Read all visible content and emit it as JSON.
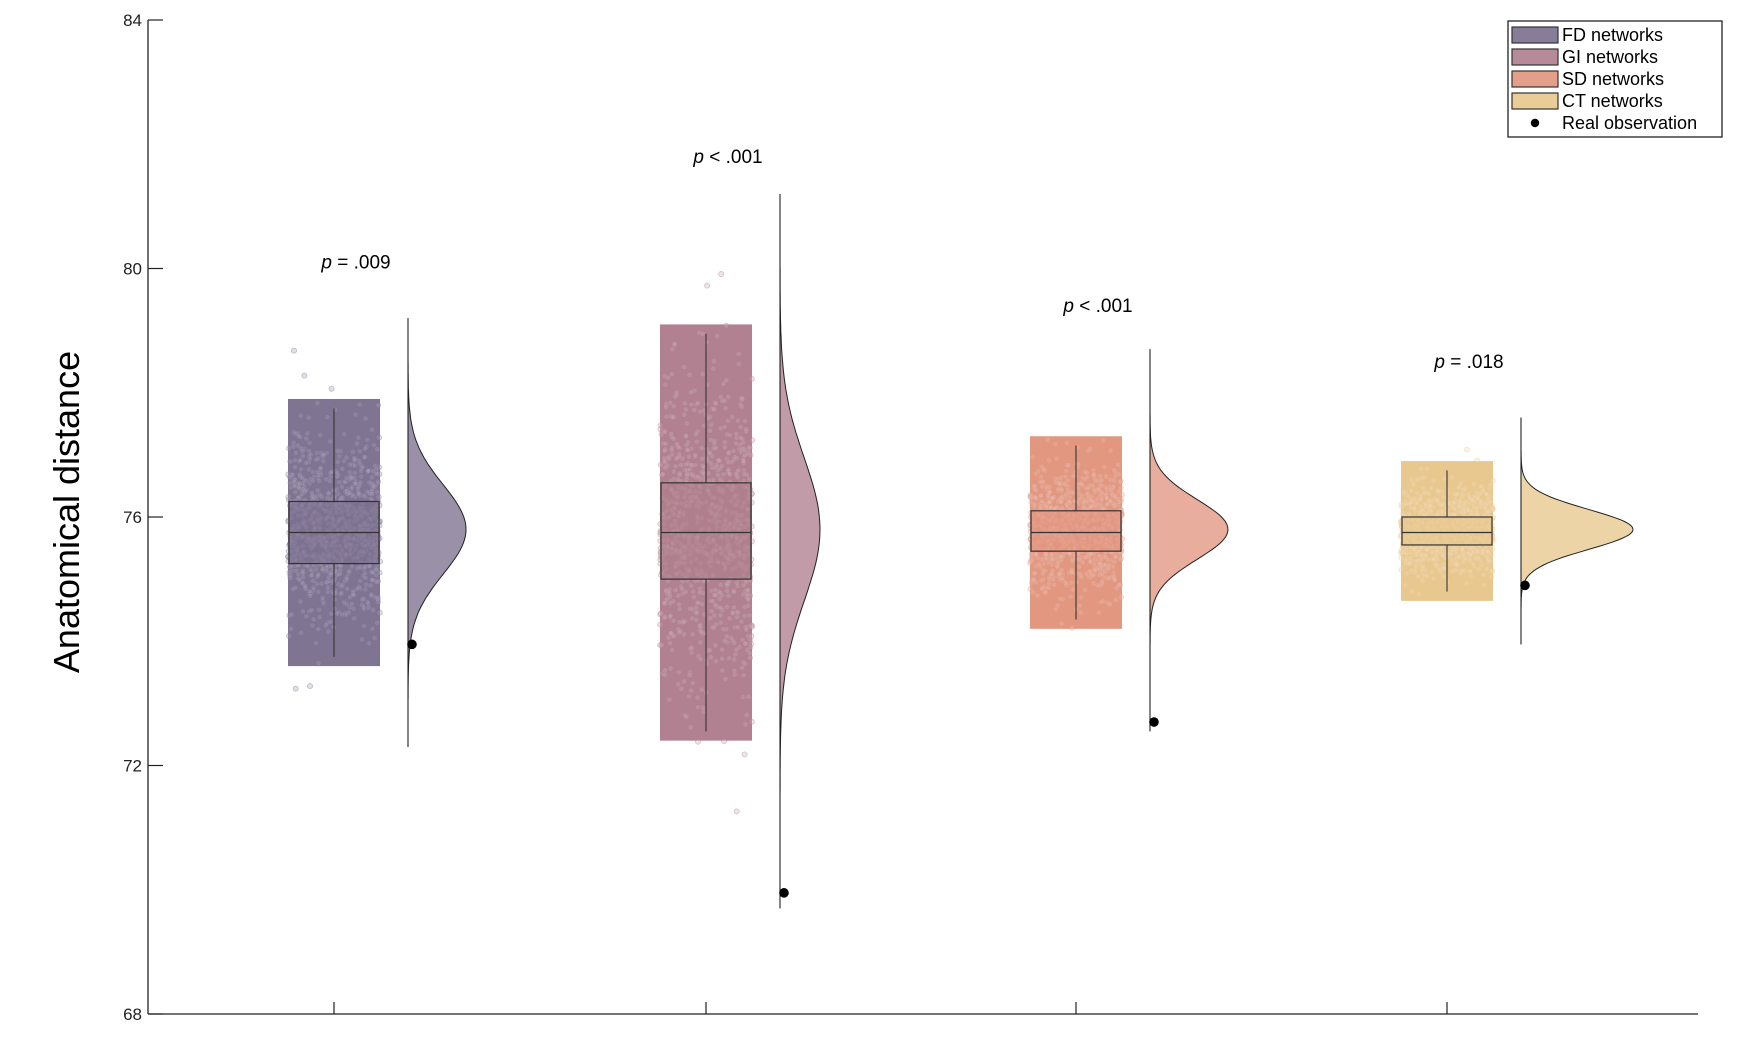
{
  "chart_data": {
    "type": "raincloud",
    "title": "",
    "xlabel": "",
    "ylabel": "Anatomical distance",
    "ylim": [
      68,
      84
    ],
    "yticks": [
      68,
      72,
      76,
      80,
      84
    ],
    "grid": false,
    "legend_position": "top-right",
    "legend": {
      "entries": [
        "FD networks",
        "GI  networks",
        "SD networks",
        "CT networks"
      ],
      "observation_label": "Real observation"
    },
    "series": [
      {
        "name": "FD networks",
        "color": "#7b6f8e",
        "box": {
          "q1": 75.25,
          "median": 75.75,
          "q3": 76.25,
          "whisker_low": 73.75,
          "whisker_high": 77.75
        },
        "scatter_range": [
          72.6,
          79.0
        ],
        "density": {
          "mean": 75.8,
          "sd": 0.72,
          "min": 72.3,
          "max": 79.2,
          "peak_width_ratio": 1.0
        },
        "real_observation": 73.95,
        "p_text_prefix": "p",
        "p_text_value": " = .009",
        "p_text_y": 80.0
      },
      {
        "name": "GI  networks",
        "color": "#ae7d8d",
        "box": {
          "q1": 75.0,
          "median": 75.75,
          "q3": 76.55,
          "whisker_low": 72.55,
          "whisker_high": 78.95
        },
        "scatter_range": [
          70.7,
          80.6
        ],
        "density": {
          "mean": 75.8,
          "sd": 1.15,
          "min": 69.7,
          "max": 81.2,
          "peak_width_ratio": 0.68
        },
        "real_observation": 69.95,
        "p_text_prefix": "p",
        "p_text_value": " < .001",
        "p_text_y": 81.7
      },
      {
        "name": "SD networks",
        "color": "#e1947d",
        "box": {
          "q1": 75.45,
          "median": 75.75,
          "q3": 76.1,
          "whisker_low": 74.35,
          "whisker_high": 77.15
        },
        "scatter_range": [
          73.5,
          77.95
        ],
        "density": {
          "mean": 75.8,
          "sd": 0.48,
          "min": 72.55,
          "max": 78.7,
          "peak_width_ratio": 1.45
        },
        "real_observation": 72.7,
        "p_text_prefix": "p",
        "p_text_value": " < .001",
        "p_text_y": 79.3
      },
      {
        "name": "CT networks",
        "color": "#e8c68b",
        "box": {
          "q1": 75.55,
          "median": 75.75,
          "q3": 76.0,
          "whisker_low": 74.8,
          "whisker_high": 76.75
        },
        "scatter_range": [
          74.1,
          77.3
        ],
        "density": {
          "mean": 75.8,
          "sd": 0.32,
          "min": 73.95,
          "max": 77.6,
          "peak_width_ratio": 2.1
        },
        "real_observation": 74.9,
        "p_text_prefix": "p",
        "p_text_value": " = .018",
        "p_text_y": 78.4
      }
    ]
  }
}
